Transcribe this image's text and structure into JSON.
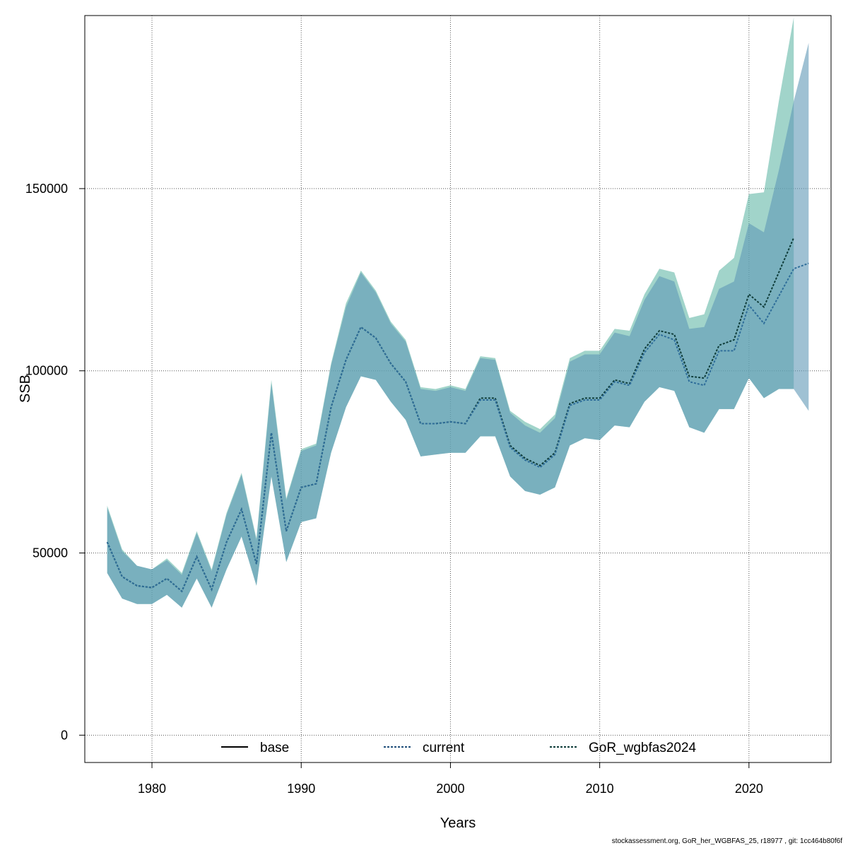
{
  "chart_data": {
    "type": "area",
    "xlabel": "Years",
    "ylabel": "SSB",
    "xlim": [
      1975.5,
      2025.5
    ],
    "ylim": [
      -7500,
      197500
    ],
    "xticks": [
      1980,
      1990,
      2000,
      2010,
      2020
    ],
    "yticks": [
      0,
      50000,
      100000,
      150000
    ],
    "grid": true,
    "legend_position": "bottom",
    "legend": [
      {
        "label": "base",
        "style": "solid",
        "color": "#000000"
      },
      {
        "label": "current",
        "style": "dotted",
        "color": "#1f4e79"
      },
      {
        "label": "GoR_wgbfas2024",
        "style": "dotted",
        "color": "#0f3d3a"
      }
    ],
    "series": [
      {
        "name": "current",
        "color": "#2f6e9a",
        "band_color": "#5f98b5",
        "years": [
          1977,
          1978,
          1979,
          1980,
          1981,
          1982,
          1983,
          1984,
          1985,
          1986,
          1987,
          1988,
          1989,
          1990,
          1991,
          1992,
          1993,
          1994,
          1995,
          1996,
          1997,
          1998,
          1999,
          2000,
          2001,
          2002,
          2003,
          2004,
          2005,
          2006,
          2007,
          2008,
          2009,
          2010,
          2011,
          2012,
          2013,
          2014,
          2015,
          2016,
          2017,
          2018,
          2019,
          2020,
          2021,
          2022,
          2023,
          2024
        ],
        "values": [
          53000,
          43500,
          41000,
          40500,
          43000,
          39500,
          49000,
          40000,
          53000,
          62000,
          47000,
          83000,
          56000,
          68000,
          69000,
          90000,
          103000,
          112000,
          109000,
          102000,
          97000,
          85500,
          85500,
          86000,
          85500,
          92000,
          92000,
          79000,
          75500,
          73500,
          77000,
          90500,
          92000,
          92000,
          97000,
          96000,
          105000,
          110000,
          108500,
          97000,
          96000,
          105500,
          105500,
          118000,
          113000,
          120500,
          128000,
          129500
        ],
        "lower": [
          44500,
          37500,
          36000,
          36000,
          38500,
          35000,
          43000,
          35000,
          45500,
          54500,
          41000,
          71000,
          47500,
          58500,
          59500,
          77500,
          90000,
          98500,
          97500,
          91500,
          86500,
          76500,
          77000,
          77500,
          77500,
          82000,
          82000,
          71000,
          67000,
          66000,
          68000,
          79500,
          81500,
          81000,
          85000,
          84500,
          91500,
          95500,
          94500,
          84500,
          83000,
          89500,
          89500,
          98000,
          92500,
          95000,
          95000,
          89000
        ],
        "upper": [
          62500,
          50500,
          46500,
          45500,
          48000,
          44000,
          55500,
          45000,
          60500,
          71500,
          53500,
          96500,
          64500,
          78000,
          79500,
          101500,
          117500,
          127000,
          121500,
          113000,
          108000,
          95000,
          94500,
          95500,
          94500,
          103500,
          103000,
          88500,
          85000,
          83000,
          87000,
          102500,
          104500,
          104500,
          110500,
          109500,
          119500,
          126000,
          124500,
          111500,
          112000,
          122500,
          124500,
          140500,
          138000,
          155000,
          174000,
          190000
        ]
      },
      {
        "name": "GoR_wgbfas2024",
        "color": "#0f3d3a",
        "band_color": "#63b8a7",
        "years": [
          1977,
          1978,
          1979,
          1980,
          1981,
          1982,
          1983,
          1984,
          1985,
          1986,
          1987,
          1988,
          1989,
          1990,
          1991,
          1992,
          1993,
          1994,
          1995,
          1996,
          1997,
          1998,
          1999,
          2000,
          2001,
          2002,
          2003,
          2004,
          2005,
          2006,
          2007,
          2008,
          2009,
          2010,
          2011,
          2012,
          2013,
          2014,
          2015,
          2016,
          2017,
          2018,
          2019,
          2020,
          2021,
          2022,
          2023
        ],
        "values": [
          53000,
          43500,
          41000,
          40500,
          43000,
          39500,
          49000,
          40000,
          53000,
          62000,
          47000,
          83000,
          56000,
          68000,
          69000,
          90000,
          103000,
          112000,
          109000,
          102000,
          97000,
          85500,
          85500,
          86000,
          85500,
          92500,
          92500,
          79500,
          76000,
          74000,
          77500,
          91000,
          92500,
          92500,
          97500,
          96500,
          106000,
          111000,
          110000,
          98500,
          98000,
          107000,
          108500,
          121000,
          117500,
          127000,
          136500
        ],
        "lower": [
          44500,
          37500,
          36000,
          36000,
          38500,
          35000,
          43000,
          35000,
          45500,
          54500,
          41000,
          71000,
          47500,
          58500,
          59500,
          77500,
          90000,
          98500,
          97500,
          91500,
          86500,
          76500,
          77000,
          77500,
          77500,
          82000,
          82000,
          71000,
          67000,
          66000,
          68000,
          79500,
          81500,
          81000,
          85000,
          84500,
          91500,
          95500,
          94500,
          84500,
          83000,
          89500,
          89500,
          98000,
          92500,
          95000,
          95000
        ],
        "upper": [
          63000,
          51000,
          46500,
          45500,
          48500,
          44500,
          56000,
          45500,
          61000,
          72000,
          54000,
          97500,
          65000,
          78500,
          80000,
          102000,
          118500,
          127500,
          122000,
          113500,
          108500,
          95500,
          95000,
          96000,
          95000,
          104000,
          103500,
          89000,
          86000,
          84000,
          88000,
          103500,
          105500,
          105500,
          111500,
          111000,
          121000,
          128000,
          127000,
          114500,
          115500,
          127500,
          131000,
          148500,
          149000,
          174000,
          197000
        ]
      }
    ]
  },
  "footer_text": "stockassessment.org, GoR_her_WGBFAS_25, r18977 , git: 1cc464b80f6f"
}
